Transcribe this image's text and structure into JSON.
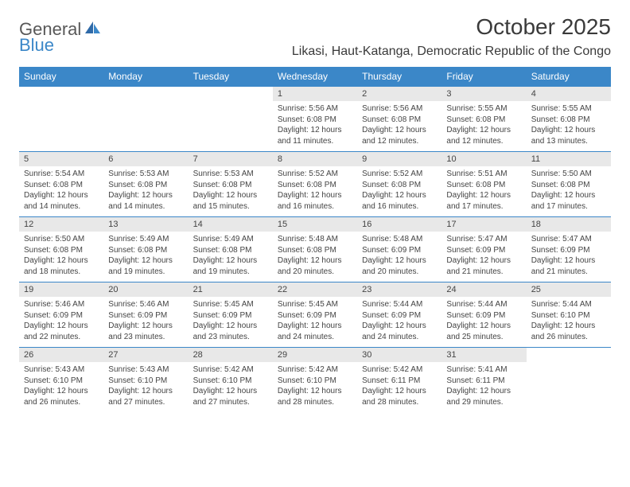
{
  "logo": {
    "text1": "General",
    "text2": "Blue"
  },
  "title": "October 2025",
  "location": "Likasi, Haut-Katanga, Democratic Republic of the Congo",
  "colors": {
    "header_bg": "#3b87c8",
    "header_fg": "#ffffff",
    "daynum_bg": "#e8e8e8",
    "border": "#3b87c8",
    "text": "#444444",
    "logo_gray": "#585858",
    "logo_blue": "#3b87c8",
    "page_bg": "#ffffff"
  },
  "fonts": {
    "title_pt": 28,
    "location_pt": 16,
    "th_pt": 12,
    "daynum_pt": 11,
    "body_pt": 10
  },
  "weekdays": [
    "Sunday",
    "Monday",
    "Tuesday",
    "Wednesday",
    "Thursday",
    "Friday",
    "Saturday"
  ],
  "weeks": [
    [
      null,
      null,
      null,
      {
        "n": "1",
        "sr": "Sunrise: 5:56 AM",
        "ss": "Sunset: 6:08 PM",
        "d1": "Daylight: 12 hours",
        "d2": "and 11 minutes."
      },
      {
        "n": "2",
        "sr": "Sunrise: 5:56 AM",
        "ss": "Sunset: 6:08 PM",
        "d1": "Daylight: 12 hours",
        "d2": "and 12 minutes."
      },
      {
        "n": "3",
        "sr": "Sunrise: 5:55 AM",
        "ss": "Sunset: 6:08 PM",
        "d1": "Daylight: 12 hours",
        "d2": "and 12 minutes."
      },
      {
        "n": "4",
        "sr": "Sunrise: 5:55 AM",
        "ss": "Sunset: 6:08 PM",
        "d1": "Daylight: 12 hours",
        "d2": "and 13 minutes."
      }
    ],
    [
      {
        "n": "5",
        "sr": "Sunrise: 5:54 AM",
        "ss": "Sunset: 6:08 PM",
        "d1": "Daylight: 12 hours",
        "d2": "and 14 minutes."
      },
      {
        "n": "6",
        "sr": "Sunrise: 5:53 AM",
        "ss": "Sunset: 6:08 PM",
        "d1": "Daylight: 12 hours",
        "d2": "and 14 minutes."
      },
      {
        "n": "7",
        "sr": "Sunrise: 5:53 AM",
        "ss": "Sunset: 6:08 PM",
        "d1": "Daylight: 12 hours",
        "d2": "and 15 minutes."
      },
      {
        "n": "8",
        "sr": "Sunrise: 5:52 AM",
        "ss": "Sunset: 6:08 PM",
        "d1": "Daylight: 12 hours",
        "d2": "and 16 minutes."
      },
      {
        "n": "9",
        "sr": "Sunrise: 5:52 AM",
        "ss": "Sunset: 6:08 PM",
        "d1": "Daylight: 12 hours",
        "d2": "and 16 minutes."
      },
      {
        "n": "10",
        "sr": "Sunrise: 5:51 AM",
        "ss": "Sunset: 6:08 PM",
        "d1": "Daylight: 12 hours",
        "d2": "and 17 minutes."
      },
      {
        "n": "11",
        "sr": "Sunrise: 5:50 AM",
        "ss": "Sunset: 6:08 PM",
        "d1": "Daylight: 12 hours",
        "d2": "and 17 minutes."
      }
    ],
    [
      {
        "n": "12",
        "sr": "Sunrise: 5:50 AM",
        "ss": "Sunset: 6:08 PM",
        "d1": "Daylight: 12 hours",
        "d2": "and 18 minutes."
      },
      {
        "n": "13",
        "sr": "Sunrise: 5:49 AM",
        "ss": "Sunset: 6:08 PM",
        "d1": "Daylight: 12 hours",
        "d2": "and 19 minutes."
      },
      {
        "n": "14",
        "sr": "Sunrise: 5:49 AM",
        "ss": "Sunset: 6:08 PM",
        "d1": "Daylight: 12 hours",
        "d2": "and 19 minutes."
      },
      {
        "n": "15",
        "sr": "Sunrise: 5:48 AM",
        "ss": "Sunset: 6:08 PM",
        "d1": "Daylight: 12 hours",
        "d2": "and 20 minutes."
      },
      {
        "n": "16",
        "sr": "Sunrise: 5:48 AM",
        "ss": "Sunset: 6:09 PM",
        "d1": "Daylight: 12 hours",
        "d2": "and 20 minutes."
      },
      {
        "n": "17",
        "sr": "Sunrise: 5:47 AM",
        "ss": "Sunset: 6:09 PM",
        "d1": "Daylight: 12 hours",
        "d2": "and 21 minutes."
      },
      {
        "n": "18",
        "sr": "Sunrise: 5:47 AM",
        "ss": "Sunset: 6:09 PM",
        "d1": "Daylight: 12 hours",
        "d2": "and 21 minutes."
      }
    ],
    [
      {
        "n": "19",
        "sr": "Sunrise: 5:46 AM",
        "ss": "Sunset: 6:09 PM",
        "d1": "Daylight: 12 hours",
        "d2": "and 22 minutes."
      },
      {
        "n": "20",
        "sr": "Sunrise: 5:46 AM",
        "ss": "Sunset: 6:09 PM",
        "d1": "Daylight: 12 hours",
        "d2": "and 23 minutes."
      },
      {
        "n": "21",
        "sr": "Sunrise: 5:45 AM",
        "ss": "Sunset: 6:09 PM",
        "d1": "Daylight: 12 hours",
        "d2": "and 23 minutes."
      },
      {
        "n": "22",
        "sr": "Sunrise: 5:45 AM",
        "ss": "Sunset: 6:09 PM",
        "d1": "Daylight: 12 hours",
        "d2": "and 24 minutes."
      },
      {
        "n": "23",
        "sr": "Sunrise: 5:44 AM",
        "ss": "Sunset: 6:09 PM",
        "d1": "Daylight: 12 hours",
        "d2": "and 24 minutes."
      },
      {
        "n": "24",
        "sr": "Sunrise: 5:44 AM",
        "ss": "Sunset: 6:09 PM",
        "d1": "Daylight: 12 hours",
        "d2": "and 25 minutes."
      },
      {
        "n": "25",
        "sr": "Sunrise: 5:44 AM",
        "ss": "Sunset: 6:10 PM",
        "d1": "Daylight: 12 hours",
        "d2": "and 26 minutes."
      }
    ],
    [
      {
        "n": "26",
        "sr": "Sunrise: 5:43 AM",
        "ss": "Sunset: 6:10 PM",
        "d1": "Daylight: 12 hours",
        "d2": "and 26 minutes."
      },
      {
        "n": "27",
        "sr": "Sunrise: 5:43 AM",
        "ss": "Sunset: 6:10 PM",
        "d1": "Daylight: 12 hours",
        "d2": "and 27 minutes."
      },
      {
        "n": "28",
        "sr": "Sunrise: 5:42 AM",
        "ss": "Sunset: 6:10 PM",
        "d1": "Daylight: 12 hours",
        "d2": "and 27 minutes."
      },
      {
        "n": "29",
        "sr": "Sunrise: 5:42 AM",
        "ss": "Sunset: 6:10 PM",
        "d1": "Daylight: 12 hours",
        "d2": "and 28 minutes."
      },
      {
        "n": "30",
        "sr": "Sunrise: 5:42 AM",
        "ss": "Sunset: 6:11 PM",
        "d1": "Daylight: 12 hours",
        "d2": "and 28 minutes."
      },
      {
        "n": "31",
        "sr": "Sunrise: 5:41 AM",
        "ss": "Sunset: 6:11 PM",
        "d1": "Daylight: 12 hours",
        "d2": "and 29 minutes."
      },
      null
    ]
  ]
}
